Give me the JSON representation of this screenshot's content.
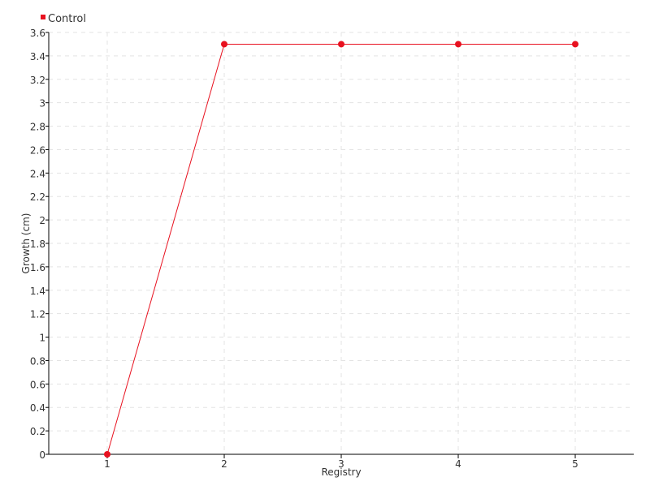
{
  "chart_data": {
    "type": "line",
    "title": "",
    "xlabel": "Registry",
    "ylabel": "Growth (cm)",
    "categories": [
      "1",
      "2",
      "3",
      "4",
      "5"
    ],
    "ylim": [
      0,
      3.6
    ],
    "yticks": [
      "0",
      "0.2",
      "0.4",
      "0.6",
      "0.8",
      "1",
      "1.2",
      "1.4",
      "1.6",
      "1.8",
      "2",
      "2.2",
      "2.4",
      "2.6",
      "2.8",
      "3",
      "3.2",
      "3.4",
      "3.6"
    ],
    "grid": true,
    "legend": "top-left",
    "series": [
      {
        "name": "Control",
        "color": "#e8111f",
        "values": [
          0,
          3.5,
          3.5,
          3.5,
          3.5
        ]
      }
    ]
  }
}
